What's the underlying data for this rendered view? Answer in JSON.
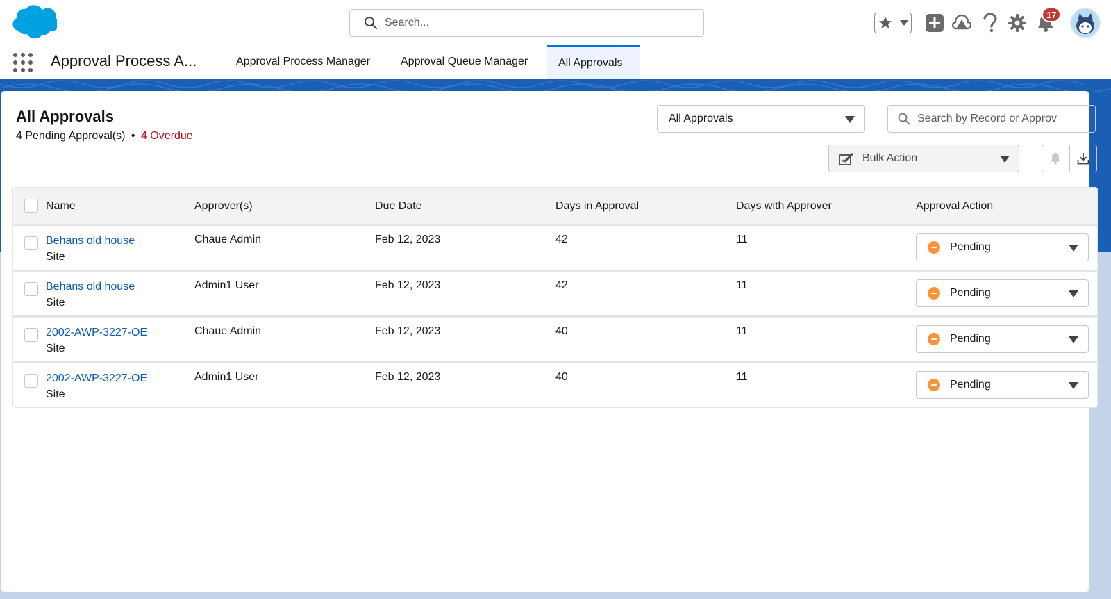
{
  "header": {
    "search_placeholder": "Search...",
    "notification_count": "17",
    "icons": [
      "cloud-logo-icon",
      "search-icon",
      "favorite-star-icon",
      "chevron-down-icon",
      "add-icon",
      "trailhead-icon",
      "help-icon",
      "gear-icon",
      "bell-icon",
      "avatar-icon"
    ]
  },
  "app_nav": {
    "app_name": "Approval Process A...",
    "tabs": [
      {
        "label": "Approval Process Manager",
        "active": false
      },
      {
        "label": "Approval Queue Manager",
        "active": false
      },
      {
        "label": "All Approvals",
        "active": true
      }
    ]
  },
  "page": {
    "title": "All Approvals",
    "pending_text": "4 Pending Approval(s)",
    "separator": "•",
    "overdue_text": "4 Overdue",
    "filter_value": "All Approvals",
    "record_search_placeholder": "Search by Record or Approv",
    "bulk_action_label": "Bulk Action"
  },
  "table": {
    "columns": [
      "Name",
      "Approver(s)",
      "Due Date",
      "Days in Approval",
      "Days with Approver",
      "Approval Action"
    ],
    "rows": [
      {
        "name": "Behans old house",
        "type": "Site",
        "approver": "Chaue Admin",
        "due": "Feb 12, 2023",
        "days_in_approval": "42",
        "days_with_approver": "11",
        "action": "Pending"
      },
      {
        "name": "Behans old house",
        "type": "Site",
        "approver": "Admin1 User",
        "due": "Feb 12, 2023",
        "days_in_approval": "42",
        "days_with_approver": "11",
        "action": "Pending"
      },
      {
        "name": "2002-AWP-3227-OE",
        "type": "Site",
        "approver": "Chaue Admin",
        "due": "Feb 12, 2023",
        "days_in_approval": "40",
        "days_with_approver": "11",
        "action": "Pending"
      },
      {
        "name": "2002-AWP-3227-OE",
        "type": "Site",
        "approver": "Admin1 User",
        "due": "Feb 12, 2023",
        "days_in_approval": "40",
        "days_with_approver": "11",
        "action": "Pending"
      }
    ]
  },
  "colors": {
    "brand_blue": "#0176d3",
    "link_blue": "#0b5cab",
    "overdue_red": "#ba0517",
    "pending_orange": "#fe9339",
    "badge_red": "#c23934"
  }
}
